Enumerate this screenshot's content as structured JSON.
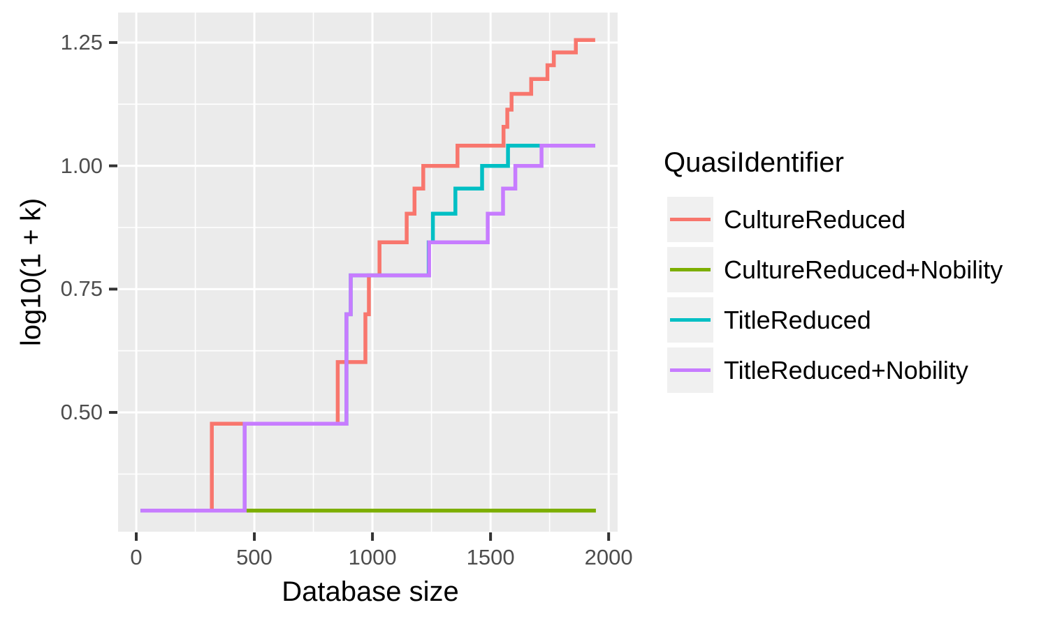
{
  "figure": {
    "background": "#FFFFFF"
  },
  "axes": {
    "x": {
      "title": "Database size",
      "tick_labels": [
        "0",
        "500",
        "1000",
        "1500",
        "2000"
      ]
    },
    "y": {
      "title": "log10(1 + k)",
      "tick_labels": [
        "0.50",
        "0.75",
        "1.00",
        "1.25"
      ]
    }
  },
  "legend": {
    "title": "QuasiIdentifier",
    "position": "right",
    "key_fill": "#F0F0F0",
    "items": [
      {
        "label": "CultureReduced",
        "color": "#F8766D"
      },
      {
        "label": "CultureReduced+Nobility",
        "color": "#7CAE00"
      },
      {
        "label": "TitleReduced",
        "color": "#00BFC4"
      },
      {
        "label": "TitleReduced+Nobility",
        "color": "#C77CFF"
      }
    ]
  },
  "chart_data": {
    "type": "line",
    "subtype": "step",
    "title": "",
    "xlabel": "Database size",
    "ylabel": "log10(1 + k)",
    "xlim": [
      -77,
      2038
    ],
    "ylim": [
      0.2581,
      1.3108
    ],
    "grid": true,
    "panel_bg": "#EBEBEB",
    "grid_color": "#FFFFFF",
    "tick_color": "#333333",
    "x_major_gridlines": [
      0,
      500,
      1000,
      1500,
      2000
    ],
    "x_minor_gridlines": [
      250,
      750,
      1250,
      1750
    ],
    "y_major_gridlines": [
      0.5,
      0.75,
      1.0,
      1.25
    ],
    "y_minor_gridlines": [
      0.375,
      0.625,
      0.875,
      1.125
    ],
    "series": [
      {
        "name": "CultureReduced",
        "color": "#F8766D",
        "x_end": 1943,
        "steps": [
          [
            18,
            0.301
          ],
          [
            320,
            0.477
          ],
          [
            853,
            0.602
          ],
          [
            970,
            0.699
          ],
          [
            985,
            0.778
          ],
          [
            1030,
            0.845
          ],
          [
            1145,
            0.903
          ],
          [
            1178,
            0.954
          ],
          [
            1215,
            1.0
          ],
          [
            1360,
            1.041
          ],
          [
            1555,
            1.079
          ],
          [
            1571,
            1.114
          ],
          [
            1589,
            1.146
          ],
          [
            1672,
            1.176
          ],
          [
            1741,
            1.204
          ],
          [
            1768,
            1.23
          ],
          [
            1861,
            1.255
          ]
        ],
        "k_values": [
          1,
          2,
          3,
          4,
          5,
          6,
          7,
          8,
          9,
          10,
          11,
          12,
          13,
          14,
          15,
          16,
          17
        ]
      },
      {
        "name": "CultureReduced+Nobility",
        "color": "#7CAE00",
        "x_end": 1946,
        "steps": [
          [
            18,
            0.301
          ]
        ],
        "k_values": [
          1
        ]
      },
      {
        "name": "TitleReduced",
        "color": "#00BFC4",
        "x_end": 1943,
        "steps": [
          [
            18,
            0.301
          ],
          [
            459,
            0.477
          ],
          [
            890,
            0.699
          ],
          [
            908,
            0.778
          ],
          [
            1238,
            0.845
          ],
          [
            1256,
            0.903
          ],
          [
            1351,
            0.954
          ],
          [
            1464,
            1.0
          ],
          [
            1574,
            1.041
          ]
        ],
        "k_values": [
          1,
          2,
          4,
          5,
          6,
          7,
          8,
          9,
          10
        ]
      },
      {
        "name": "TitleReduced+Nobility",
        "color": "#C77CFF",
        "x_end": 1943,
        "steps": [
          [
            18,
            0.301
          ],
          [
            459,
            0.477
          ],
          [
            890,
            0.699
          ],
          [
            908,
            0.778
          ],
          [
            1240,
            0.845
          ],
          [
            1488,
            0.903
          ],
          [
            1553,
            0.954
          ],
          [
            1605,
            1.0
          ],
          [
            1716,
            1.041
          ]
        ],
        "k_values": [
          1,
          2,
          4,
          5,
          6,
          7,
          8,
          9,
          10
        ]
      }
    ]
  }
}
